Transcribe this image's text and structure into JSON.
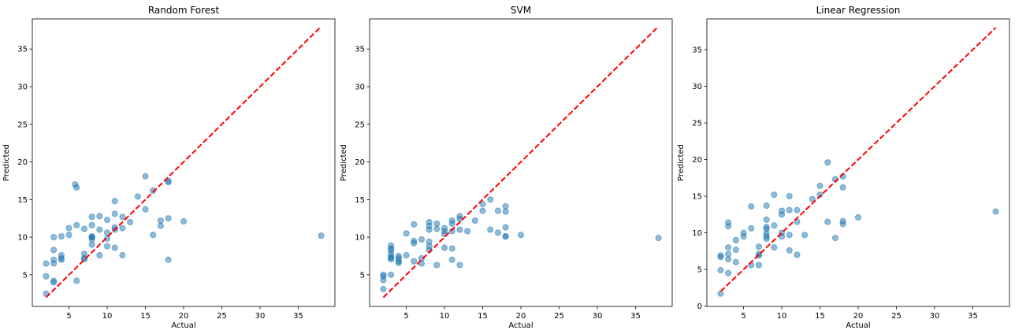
{
  "chart_data": [
    {
      "type": "scatter",
      "title": "Random Forest",
      "xlabel": "Actual",
      "ylabel": "Predicted",
      "xlim": [
        0.2,
        39.8
      ],
      "ylim": [
        0.8,
        39.0
      ],
      "xticks": [
        5,
        10,
        15,
        20,
        25,
        30,
        35
      ],
      "yticks": [
        5,
        10,
        15,
        20,
        25,
        30,
        35
      ],
      "reference_line": {
        "x": [
          2,
          38
        ],
        "y": [
          2,
          38
        ],
        "color": "#ff0000",
        "style": "dashed"
      },
      "point_color": "#1f77b4",
      "series": [
        {
          "x": [
            2,
            2,
            2,
            3,
            3,
            3,
            3,
            3,
            3,
            4,
            4,
            4,
            4,
            5,
            5,
            5.8,
            6,
            6,
            6,
            7,
            7,
            7,
            7,
            8,
            8,
            8,
            8,
            8,
            8,
            8,
            9,
            9,
            9,
            10,
            10,
            10,
            10,
            11,
            11,
            11,
            11,
            11,
            12,
            12,
            12,
            13,
            14,
            15,
            15,
            16,
            16,
            17,
            17,
            18,
            18,
            18,
            18,
            20,
            38
          ],
          "y": [
            2.5,
            6.5,
            4.8,
            10.0,
            8.3,
            7.0,
            6.5,
            4.2,
            4.0,
            10.1,
            7.6,
            7.2,
            7.0,
            11.2,
            10.3,
            17.0,
            16.6,
            11.6,
            4.2,
            11.1,
            7.8,
            7.2,
            7.1,
            12.7,
            11.6,
            10.1,
            10.0,
            10.0,
            9.7,
            9.0,
            12.8,
            11.0,
            7.6,
            12.3,
            10.6,
            9.8,
            8.8,
            14.8,
            13.1,
            11.3,
            11.0,
            8.6,
            12.7,
            11.2,
            7.6,
            12.0,
            15.4,
            18.1,
            13.7,
            16.2,
            10.3,
            12.2,
            11.5,
            17.5,
            17.3,
            12.5,
            7.0,
            12.1,
            10.2
          ]
        }
      ]
    },
    {
      "type": "scatter",
      "title": "SVM",
      "xlabel": "Actual",
      "ylabel": "Predicted",
      "xlim": [
        0.2,
        39.8
      ],
      "ylim": [
        0.8,
        39.0
      ],
      "xticks": [
        5,
        10,
        15,
        20,
        25,
        30,
        35
      ],
      "yticks": [
        5,
        10,
        15,
        20,
        25,
        30,
        35
      ],
      "reference_line": {
        "x": [
          2,
          38
        ],
        "y": [
          2,
          38
        ],
        "color": "#ff0000",
        "style": "dashed"
      },
      "point_color": "#1f77b4",
      "series": [
        {
          "x": [
            2,
            2,
            2,
            2,
            3,
            3,
            3,
            3,
            3,
            3,
            3,
            3,
            4,
            4,
            4,
            4,
            5,
            5,
            6,
            6,
            6,
            6,
            7,
            7,
            7,
            8,
            8,
            8,
            8,
            8,
            8,
            9,
            9,
            9,
            10,
            10,
            10,
            10,
            11,
            11,
            11,
            11,
            11,
            12,
            12,
            12,
            12,
            13,
            14,
            15,
            15,
            16,
            16,
            17,
            17,
            18,
            18,
            18,
            18,
            18,
            20,
            38
          ],
          "y": [
            5.0,
            4.8,
            4.3,
            3.1,
            8.9,
            8.5,
            8.3,
            7.8,
            7.4,
            7.2,
            7.1,
            5.0,
            7.5,
            7.2,
            6.8,
            6.6,
            10.5,
            7.6,
            11.7,
            9.5,
            9.2,
            6.8,
            9.7,
            7.2,
            6.5,
            12.0,
            11.5,
            11.0,
            9.4,
            8.8,
            8.3,
            11.8,
            11.1,
            6.3,
            11.2,
            10.8,
            10.4,
            8.6,
            12.2,
            11.8,
            8.5,
            7.0,
            10.8,
            12.8,
            12.4,
            11.0,
            6.3,
            10.8,
            12.2,
            14.4,
            13.5,
            15.0,
            11.0,
            13.5,
            10.6,
            14.1,
            13.4,
            11.3,
            10.1,
            10.1,
            10.3,
            9.9
          ]
        }
      ]
    },
    {
      "type": "scatter",
      "title": "Linear Regression",
      "xlabel": "Actual",
      "ylabel": "Predicted",
      "xlim": [
        0.2,
        39.8
      ],
      "ylim": [
        -0.05,
        39.2
      ],
      "xticks": [
        5,
        10,
        15,
        20,
        25,
        30,
        35
      ],
      "yticks": [
        0,
        5,
        10,
        15,
        20,
        25,
        30,
        35
      ],
      "reference_line": {
        "x": [
          2,
          38
        ],
        "y": [
          2,
          38
        ],
        "color": "#ff0000",
        "style": "dashed"
      },
      "point_color": "#1f77b4",
      "series": [
        {
          "x": [
            2,
            2,
            2,
            2,
            3,
            3,
            3,
            3,
            3,
            3,
            4,
            4,
            4,
            5,
            5,
            6,
            6,
            6,
            7,
            7,
            7,
            7,
            8,
            8,
            8,
            8,
            8,
            8,
            8,
            9,
            9,
            9,
            10,
            10,
            10,
            10,
            11,
            11,
            11,
            11,
            12,
            12,
            12,
            13,
            14,
            15,
            15,
            16,
            16,
            17,
            17,
            18,
            18,
            18,
            18,
            20,
            38
          ],
          "y": [
            6.9,
            6.7,
            4.9,
            1.7,
            11.4,
            10.9,
            8.0,
            7.1,
            6.4,
            4.5,
            9.0,
            7.7,
            6.0,
            10.0,
            9.5,
            13.6,
            10.6,
            5.6,
            8.1,
            7.1,
            6.9,
            5.6,
            13.7,
            11.8,
            10.8,
            10.5,
            9.9,
            9.5,
            9.2,
            15.2,
            11.0,
            8.0,
            13.0,
            12.5,
            10.0,
            9.5,
            15.0,
            13.1,
            9.7,
            7.6,
            13.1,
            11.5,
            7.0,
            9.7,
            14.6,
            16.4,
            15.2,
            19.6,
            11.5,
            17.3,
            9.3,
            17.7,
            16.2,
            11.6,
            11.2,
            12.1,
            12.9
          ]
        }
      ]
    }
  ]
}
